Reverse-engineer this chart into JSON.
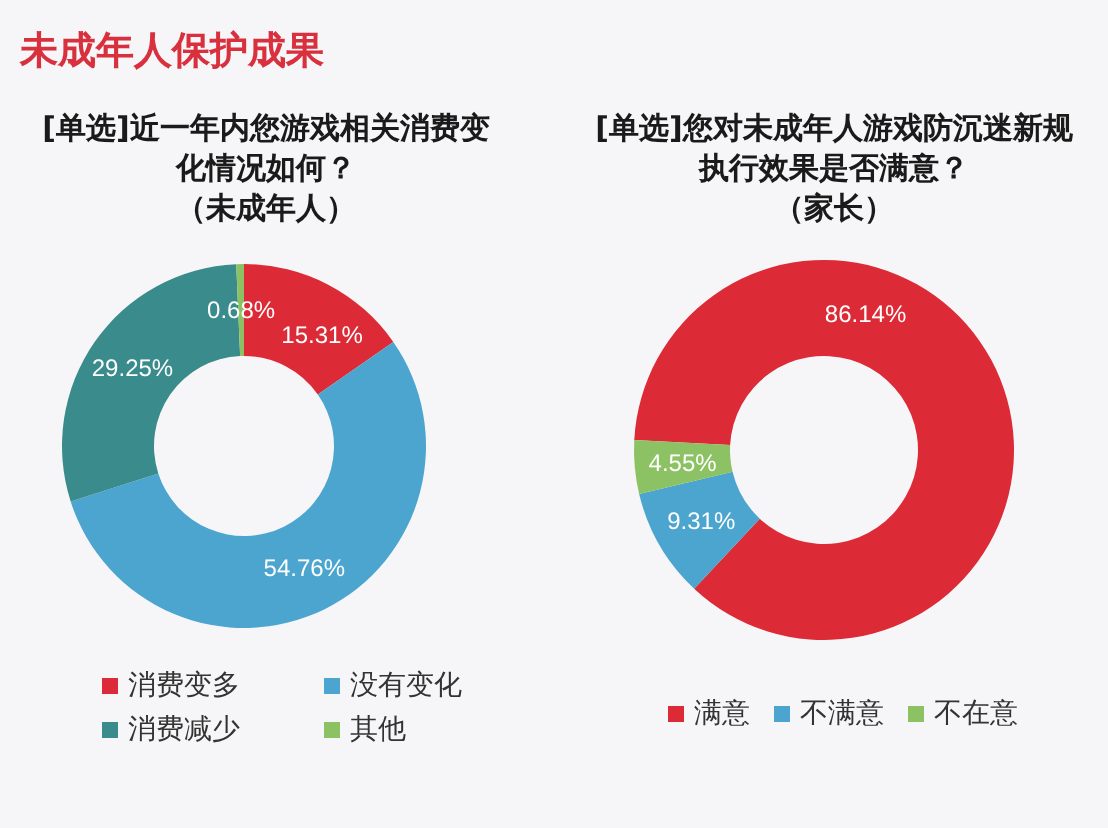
{
  "chart_data": [
    {
      "type": "donut",
      "title": "未成年人保护成果",
      "subtitle": "[单选]近一年内您游戏相关消费变化情况如何？（未成年人）",
      "categories": [
        "消费变多",
        "没有变化",
        "消费减少",
        "其他"
      ],
      "values": [
        15.31,
        54.76,
        29.25,
        0.68
      ],
      "colors": [
        "#dc2b37",
        "#4ba5cf",
        "#3a8b8b",
        "#8cc264"
      ],
      "value_labels": [
        "15.31%",
        "54.76%",
        "29.25%",
        "0.68%"
      ],
      "legend": "bottom"
    },
    {
      "type": "donut",
      "subtitle": "[单选]您对未成年人游戏防沉迷新规执行效果是否满意？（家长）",
      "categories": [
        "满意",
        "不满意",
        "不在意"
      ],
      "values": [
        86.14,
        9.31,
        4.55
      ],
      "colors": [
        "#dc2b37",
        "#4ba5cf",
        "#8cc264"
      ],
      "value_labels": [
        "86.14%",
        "9.31%",
        "4.55%"
      ],
      "legend": "bottom"
    }
  ]
}
